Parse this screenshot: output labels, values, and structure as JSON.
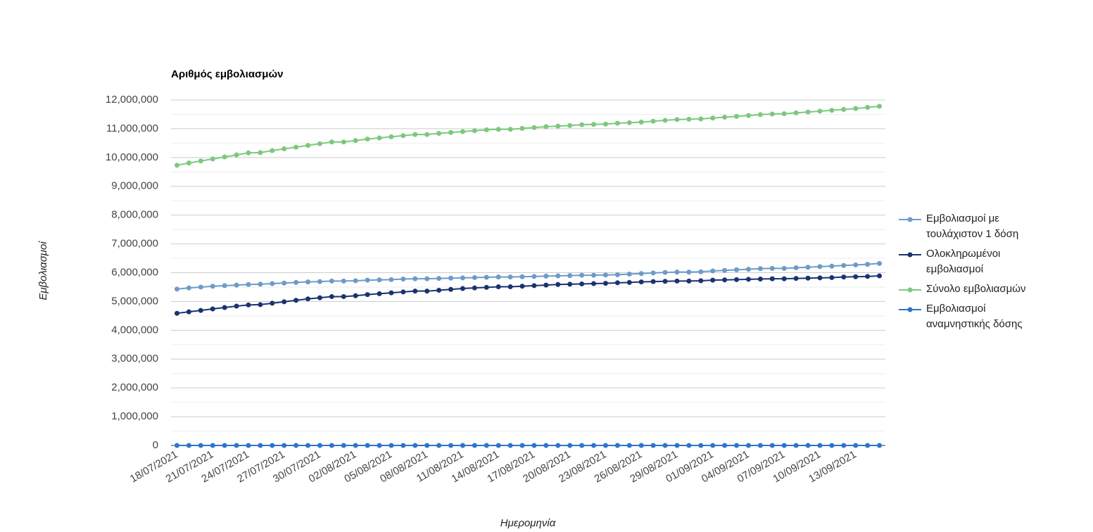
{
  "chart_data": {
    "type": "line",
    "title": "Αριθμός εμβολιασμών",
    "x_label": "Ημερομηνία",
    "y_label": "Εμβολιασμοί",
    "categories": [
      "18/07/2021",
      null,
      null,
      "21/07/2021",
      null,
      null,
      "24/07/2021",
      null,
      null,
      "27/07/2021",
      null,
      null,
      "30/07/2021",
      null,
      null,
      "02/08/2021",
      null,
      null,
      "05/08/2021",
      null,
      null,
      "08/08/2021",
      null,
      null,
      "11/08/2021",
      null,
      null,
      "14/08/2021",
      null,
      null,
      "17/08/2021",
      null,
      null,
      "20/08/2021",
      null,
      null,
      "23/08/2021",
      null,
      null,
      "26/08/2021",
      null,
      null,
      "29/08/2021",
      null,
      null,
      "01/09/2021",
      null,
      null,
      "04/09/2021",
      null,
      null,
      "07/09/2021",
      null,
      null,
      "10/09/2021",
      null,
      null,
      "13/09/2021",
      null,
      null
    ],
    "series": [
      {
        "name": "Εμβολιασμοί με τουλάχιστον 1 δόση",
        "color": "#6d9bc9",
        "values": [
          5430000,
          5470000,
          5500000,
          5530000,
          5550000,
          5570000,
          5590000,
          5600000,
          5620000,
          5640000,
          5660000,
          5680000,
          5690000,
          5710000,
          5710000,
          5720000,
          5740000,
          5750000,
          5760000,
          5780000,
          5790000,
          5790000,
          5800000,
          5810000,
          5820000,
          5830000,
          5840000,
          5850000,
          5850000,
          5860000,
          5870000,
          5880000,
          5890000,
          5900000,
          5910000,
          5910000,
          5920000,
          5930000,
          5950000,
          5970000,
          5990000,
          6010000,
          6020000,
          6020000,
          6030000,
          6060000,
          6080000,
          6100000,
          6120000,
          6140000,
          6150000,
          6150000,
          6170000,
          6190000,
          6210000,
          6230000,
          6250000,
          6270000,
          6290000,
          6320000
        ]
      },
      {
        "name": "Ολοκληρωμένοι εμβολιασμοί",
        "color": "#1a3370",
        "values": [
          4590000,
          4640000,
          4690000,
          4740000,
          4790000,
          4840000,
          4880000,
          4890000,
          4940000,
          4990000,
          5040000,
          5090000,
          5130000,
          5170000,
          5170000,
          5200000,
          5240000,
          5270000,
          5300000,
          5330000,
          5360000,
          5360000,
          5390000,
          5420000,
          5450000,
          5470000,
          5490000,
          5510000,
          5510000,
          5530000,
          5550000,
          5570000,
          5590000,
          5600000,
          5610000,
          5620000,
          5630000,
          5650000,
          5660000,
          5680000,
          5690000,
          5700000,
          5710000,
          5710000,
          5720000,
          5740000,
          5750000,
          5760000,
          5770000,
          5780000,
          5790000,
          5790000,
          5800000,
          5810000,
          5820000,
          5830000,
          5850000,
          5860000,
          5870000,
          5890000
        ]
      },
      {
        "name": "Σύνολο εμβολιασμών",
        "color": "#7dc87e",
        "values": [
          9730000,
          9810000,
          9880000,
          9950000,
          10020000,
          10090000,
          10160000,
          10170000,
          10240000,
          10300000,
          10360000,
          10420000,
          10480000,
          10540000,
          10540000,
          10590000,
          10640000,
          10680000,
          10720000,
          10760000,
          10800000,
          10800000,
          10840000,
          10870000,
          10900000,
          10930000,
          10960000,
          10980000,
          10980000,
          11010000,
          11040000,
          11070000,
          11090000,
          11110000,
          11140000,
          11150000,
          11160000,
          11190000,
          11210000,
          11230000,
          11260000,
          11290000,
          11320000,
          11330000,
          11340000,
          11370000,
          11400000,
          11430000,
          11460000,
          11490000,
          11510000,
          11520000,
          11550000,
          11580000,
          11610000,
          11640000,
          11670000,
          11700000,
          11740000,
          11780000
        ]
      },
      {
        "name": "Εμβολιασμοί αναμνηστικής δόσης",
        "color": "#2f75c9",
        "values": [
          0,
          0,
          0,
          0,
          0,
          0,
          0,
          0,
          0,
          0,
          0,
          0,
          0,
          0,
          0,
          0,
          0,
          0,
          0,
          0,
          0,
          0,
          0,
          0,
          0,
          0,
          0,
          0,
          0,
          0,
          0,
          0,
          0,
          0,
          0,
          0,
          0,
          0,
          0,
          0,
          0,
          0,
          0,
          0,
          0,
          0,
          0,
          0,
          0,
          0,
          0,
          0,
          0,
          0,
          0,
          0,
          0,
          0,
          0,
          0
        ]
      }
    ],
    "ylim": [
      0,
      12000000
    ],
    "yticks": [
      0,
      {
        "value": 1000000,
        "label": "1,000,000"
      },
      {
        "value": 2000000,
        "label": "2,000,000"
      },
      {
        "value": 3000000,
        "label": "3,000,000"
      },
      {
        "value": 4000000,
        "label": "4,000,000"
      },
      {
        "value": 5000000,
        "label": "5,000,000"
      },
      {
        "value": 6000000,
        "label": "6,000,000"
      },
      {
        "value": 7000000,
        "label": "7,000,000"
      },
      {
        "value": 8000000,
        "label": "8,000,000"
      },
      {
        "value": 9000000,
        "label": "9,000,000"
      },
      {
        "value": 10000000,
        "label": "10,000,000"
      },
      {
        "value": 11000000,
        "label": "11,000,000"
      },
      {
        "value": 12000000,
        "label": "12,000,000"
      }
    ],
    "grid": true,
    "legend": "right"
  }
}
